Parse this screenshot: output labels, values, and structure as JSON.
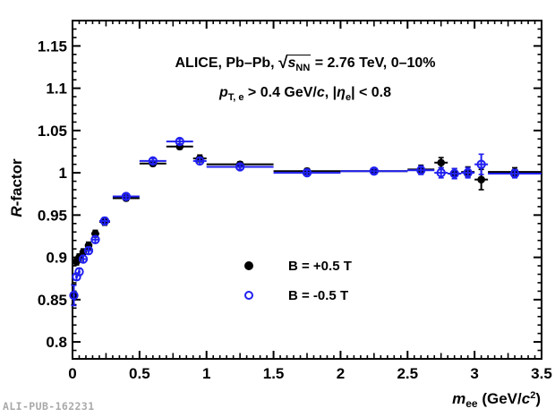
{
  "watermark": "ALI-PUB-162231",
  "colors": {
    "series_plus": "#000000",
    "series_minus": "#2020f0",
    "frame": "#000000",
    "background": "#ffffff",
    "watermark": "#a9a9a9"
  },
  "annotations": {
    "line1": {
      "prefix": "ALICE, Pb–Pb, ",
      "sqrt": "√",
      "s": "s",
      "s_sub": "NN",
      "suffix": " = 2.76 TeV, 0–10%"
    },
    "line2": {
      "p": "p",
      "p_sub": "T, e",
      "mid": " > 0.4 GeV/",
      "c": "c",
      "sep": ", |",
      "eta": "η",
      "eta_sub": "e",
      "end": "| < 0.8"
    }
  },
  "axes": {
    "y_title_italic": "R",
    "y_title_rest": "-factor",
    "x_title_italic": "m",
    "x_title_sub": "ee",
    "x_title_unit": "  (GeV/",
    "x_title_c": "c",
    "x_title_sup": "2",
    "x_title_close": ")"
  },
  "legend": [
    {
      "label": "B = +0.5 T",
      "marker": "filled-circle",
      "color": "#000000"
    },
    {
      "label": "B = -0.5 T",
      "marker": "open-circle",
      "color": "#2020f0"
    }
  ],
  "chart_data": {
    "type": "scatter",
    "title": "",
    "annotations": [
      "ALICE, Pb–Pb, √s_NN = 2.76 TeV, 0–10%",
      "p_T,e > 0.4 GeV/c, |η_e| < 0.8"
    ],
    "xlabel": "m_ee (GeV/c^2)",
    "ylabel": "R-factor",
    "xlim": [
      0,
      3.5
    ],
    "ylim": [
      0.78,
      1.18
    ],
    "grid": false,
    "legend_position": "inside-bottom-center",
    "x_major_ticks": [
      0,
      0.5,
      1,
      1.5,
      2,
      2.5,
      3,
      3.5
    ],
    "x_tick_labels": [
      "0",
      "0.5",
      "1",
      "1.5",
      "2",
      "2.5",
      "3",
      "3.5"
    ],
    "x_minor_step": 0.05,
    "y_major_ticks": [
      0.8,
      0.85,
      0.9,
      0.95,
      1.0,
      1.05,
      1.1,
      1.15
    ],
    "y_tick_labels": [
      "0.8",
      "0.85",
      "0.9",
      "0.95",
      "1",
      "1.05",
      "1.1",
      "1.15"
    ],
    "y_minor_step": 0.01,
    "point_format": [
      "m_ee",
      "R",
      "bin_low",
      "bin_high",
      "R_err"
    ],
    "series": [
      {
        "name": "B = +0.5 T",
        "marker": "filled-circle",
        "color": "#000000",
        "points": [
          [
            0.01,
            0.856,
            0.0,
            0.02,
            0.012
          ],
          [
            0.03,
            0.895,
            0.02,
            0.04,
            0.004
          ],
          [
            0.05,
            0.9,
            0.04,
            0.06,
            0.004
          ],
          [
            0.08,
            0.906,
            0.06,
            0.1,
            0.004
          ],
          [
            0.12,
            0.914,
            0.1,
            0.14,
            0.004
          ],
          [
            0.17,
            0.928,
            0.14,
            0.2,
            0.004
          ],
          [
            0.24,
            0.942,
            0.2,
            0.28,
            0.004
          ],
          [
            0.4,
            0.97,
            0.3,
            0.5,
            0.003
          ],
          [
            0.6,
            1.011,
            0.5,
            0.7,
            0.003
          ],
          [
            0.8,
            1.031,
            0.7,
            0.9,
            0.003
          ],
          [
            0.95,
            1.017,
            0.9,
            1.0,
            0.004
          ],
          [
            1.25,
            1.01,
            1.0,
            1.5,
            0.003
          ],
          [
            1.75,
            1.002,
            1.5,
            2.0,
            0.003
          ],
          [
            2.25,
            1.002,
            2.0,
            2.5,
            0.003
          ],
          [
            2.6,
            1.004,
            2.5,
            2.7,
            0.005
          ],
          [
            2.75,
            1.012,
            2.7,
            2.8,
            0.006
          ],
          [
            2.85,
            0.999,
            2.8,
            2.9,
            0.006
          ],
          [
            2.95,
            1.001,
            2.9,
            3.0,
            0.006
          ],
          [
            3.05,
            0.992,
            3.0,
            3.1,
            0.012
          ],
          [
            3.3,
            1.001,
            3.1,
            3.5,
            0.005
          ]
        ]
      },
      {
        "name": "B = -0.5 T",
        "marker": "open-circle",
        "color": "#2020f0",
        "points": [
          [
            0.01,
            0.855,
            0.0,
            0.02,
            0.012
          ],
          [
            0.03,
            0.877,
            0.02,
            0.04,
            0.004
          ],
          [
            0.05,
            0.883,
            0.04,
            0.06,
            0.004
          ],
          [
            0.08,
            0.898,
            0.06,
            0.1,
            0.004
          ],
          [
            0.12,
            0.908,
            0.1,
            0.14,
            0.004
          ],
          [
            0.17,
            0.921,
            0.14,
            0.2,
            0.004
          ],
          [
            0.24,
            0.943,
            0.2,
            0.28,
            0.004
          ],
          [
            0.4,
            0.972,
            0.3,
            0.5,
            0.003
          ],
          [
            0.6,
            1.014,
            0.5,
            0.7,
            0.003
          ],
          [
            0.8,
            1.037,
            0.7,
            0.9,
            0.003
          ],
          [
            0.95,
            1.014,
            0.9,
            1.0,
            0.004
          ],
          [
            1.25,
            1.007,
            1.0,
            1.5,
            0.003
          ],
          [
            1.75,
            1.0,
            1.5,
            2.0,
            0.003
          ],
          [
            2.25,
            1.002,
            2.0,
            2.5,
            0.003
          ],
          [
            2.6,
            1.003,
            2.5,
            2.7,
            0.005
          ],
          [
            2.75,
            1.0,
            2.7,
            2.8,
            0.006
          ],
          [
            2.85,
            0.999,
            2.8,
            2.9,
            0.006
          ],
          [
            2.95,
            1.0,
            2.9,
            3.0,
            0.006
          ],
          [
            3.05,
            1.01,
            3.0,
            3.1,
            0.012
          ],
          [
            3.3,
            0.999,
            3.1,
            3.5,
            0.005
          ]
        ]
      }
    ]
  }
}
